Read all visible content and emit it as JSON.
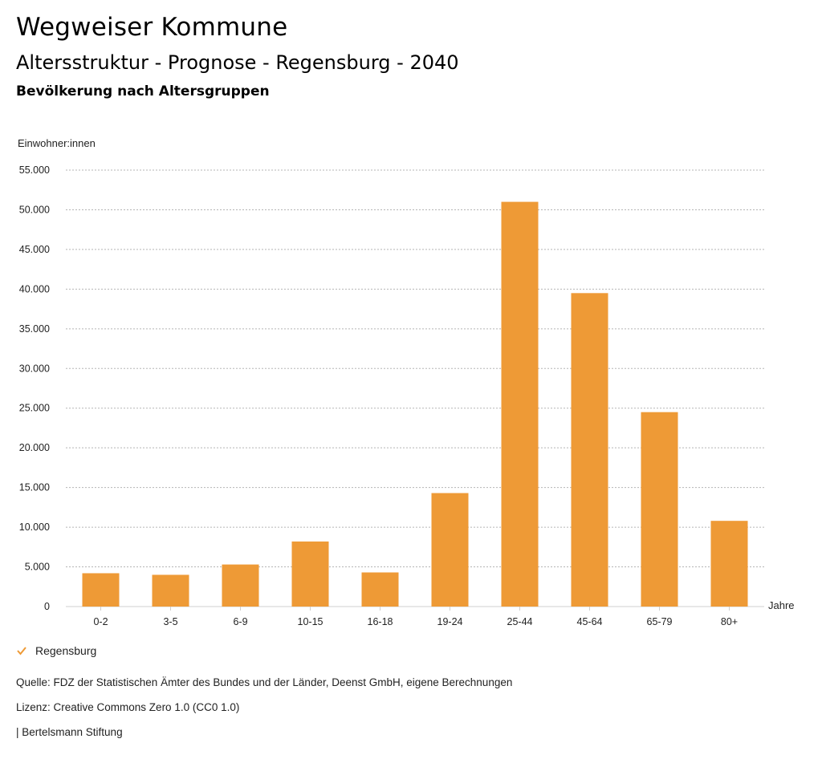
{
  "header": {
    "title": "Wegweiser Kommune",
    "subtitle": "Altersstruktur - Prognose - Regensburg - 2040",
    "subsubtitle": "Bevölkerung nach Altersgruppen"
  },
  "chart_data": {
    "type": "bar",
    "ylabel": "Einwohner:innen",
    "xlabel": "Jahre",
    "ylim": [
      0,
      55000
    ],
    "yticks": [
      0,
      5000,
      10000,
      15000,
      20000,
      25000,
      30000,
      35000,
      40000,
      45000,
      50000,
      55000
    ],
    "ytick_labels": [
      "0",
      "5.000",
      "10.000",
      "15.000",
      "20.000",
      "25.000",
      "30.000",
      "35.000",
      "40.000",
      "45.000",
      "50.000",
      "55.000"
    ],
    "categories": [
      "0-2",
      "3-5",
      "6-9",
      "10-15",
      "16-18",
      "19-24",
      "25-44",
      "45-64",
      "65-79",
      "80+"
    ],
    "series": [
      {
        "name": "Regensburg",
        "values": [
          4200,
          4000,
          5300,
          8200,
          4300,
          14300,
          51000,
          39500,
          24500,
          10800
        ]
      }
    ],
    "grid": true,
    "legend_position": "bottom-left",
    "colors": {
      "bar": "#ee9a36",
      "grid": "#b5b5b5"
    }
  },
  "legend": {
    "label": "Regensburg"
  },
  "footer": {
    "source": "Quelle: FDZ der Statistischen Ämter des Bundes und der Länder, Deenst GmbH, eigene Berechnungen",
    "license": "Lizenz: Creative Commons Zero 1.0 (CC0 1.0)",
    "publisher": "| Bertelsmann Stiftung"
  }
}
